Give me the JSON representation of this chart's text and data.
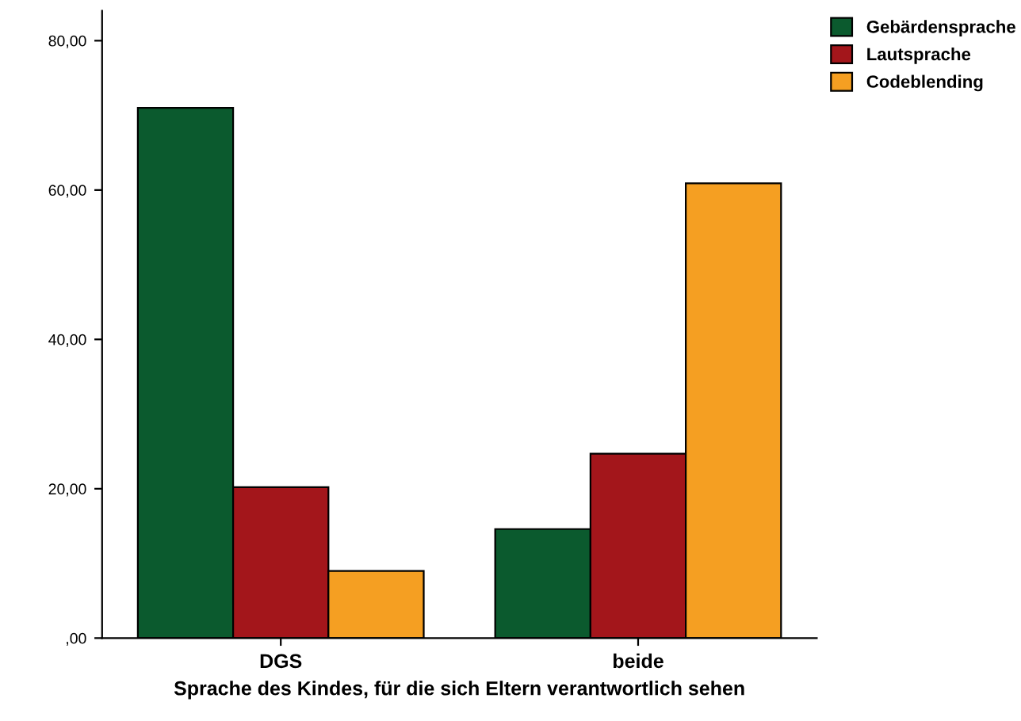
{
  "chart_data": {
    "type": "bar",
    "xlabel": "Sprache des Kindes, für die sich Eltern verantwortlich sehen",
    "categories": [
      "DGS",
      "beide"
    ],
    "series": [
      {
        "name": "Gebärdensprache",
        "color": "#0b5a2e",
        "values": [
          71.0,
          14.6
        ]
      },
      {
        "name": "Lautsprache",
        "color": "#a3161b",
        "values": [
          20.2,
          24.7
        ]
      },
      {
        "name": "Codeblending",
        "color": "#f59f22",
        "values": [
          9.0,
          60.9
        ]
      }
    ],
    "ylim": [
      0,
      84
    ],
    "yticks": [
      {
        "value": 0,
        "label": ",00"
      },
      {
        "value": 20,
        "label": "20,00"
      },
      {
        "value": 40,
        "label": "40,00"
      },
      {
        "value": 60,
        "label": "60,00"
      },
      {
        "value": 80,
        "label": "80,00"
      }
    ],
    "grid": false,
    "legend": "top right"
  }
}
